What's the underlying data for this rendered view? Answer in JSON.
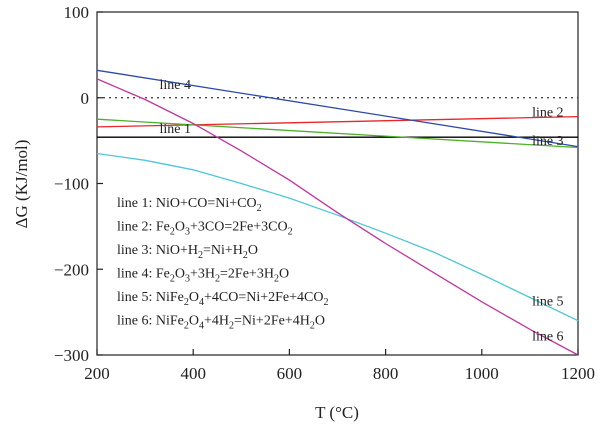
{
  "chart_data": {
    "type": "line",
    "title": "",
    "xlabel": "T (°C)",
    "ylabel": "ΔG (KJ/mol)",
    "xlim": [
      200,
      1200
    ],
    "ylim": [
      -300,
      100
    ],
    "xticks": [
      200,
      400,
      600,
      800,
      1000,
      1200
    ],
    "yticks": [
      100,
      0,
      -100,
      -200,
      -300
    ],
    "ytick_labels": [
      "100",
      "0",
      "−100",
      "−200",
      "−300"
    ],
    "grid": false,
    "zero_reference_line": "dotted",
    "series": [
      {
        "name": "line 1",
        "color": "#000000",
        "x": [
          200,
          1200
        ],
        "y": [
          -46,
          -46
        ]
      },
      {
        "name": "line 2",
        "color": "#e8262b",
        "x": [
          200,
          1200
        ],
        "y": [
          -34,
          -22
        ]
      },
      {
        "name": "line 3",
        "color": "#4caf2a",
        "x": [
          200,
          1200
        ],
        "y": [
          -25,
          -58
        ]
      },
      {
        "name": "line 4",
        "color": "#2c4aa8",
        "x": [
          200,
          1200
        ],
        "y": [
          32,
          -57
        ]
      },
      {
        "name": "line 5",
        "color": "#4ec6d8",
        "x": [
          200,
          300,
          400,
          500,
          600,
          700,
          800,
          900,
          1000,
          1100,
          1200
        ],
        "y": [
          -65,
          -73,
          -84,
          -100,
          -117,
          -137,
          -158,
          -180,
          -206,
          -233,
          -260
        ]
      },
      {
        "name": "line 6",
        "color": "#c2359f",
        "x": [
          200,
          300,
          400,
          500,
          600,
          700,
          800,
          900,
          1000,
          1100,
          1200
        ],
        "y": [
          22,
          -2,
          -30,
          -62,
          -96,
          -134,
          -170,
          -204,
          -238,
          -270,
          -300
        ]
      }
    ],
    "series_labels": [
      "line 4",
      "line 2",
      "line 1",
      "line 3",
      "line 5",
      "line 6"
    ],
    "legend": {
      "placement": "left",
      "entries": [
        [
          {
            "t": "line 1: NiO+CO=Ni+CO"
          },
          {
            "t": "2",
            "sub": true
          }
        ],
        [
          {
            "t": "line 2: Fe"
          },
          {
            "t": "2",
            "sub": true
          },
          {
            "t": "O"
          },
          {
            "t": "3",
            "sub": true
          },
          {
            "t": "+3CO=2Fe+3CO"
          },
          {
            "t": "2",
            "sub": true
          }
        ],
        [
          {
            "t": "line 3: NiO+H"
          },
          {
            "t": "2",
            "sub": true
          },
          {
            "t": "=Ni+H"
          },
          {
            "t": "2",
            "sub": true
          },
          {
            "t": "O"
          }
        ],
        [
          {
            "t": "line 4: Fe"
          },
          {
            "t": "2",
            "sub": true
          },
          {
            "t": "O"
          },
          {
            "t": "3",
            "sub": true
          },
          {
            "t": "+3H"
          },
          {
            "t": "2",
            "sub": true
          },
          {
            "t": "=2Fe+3H"
          },
          {
            "t": "2",
            "sub": true
          },
          {
            "t": "O"
          }
        ],
        [
          {
            "t": "line 5: NiFe"
          },
          {
            "t": "2",
            "sub": true
          },
          {
            "t": "O"
          },
          {
            "t": "4",
            "sub": true
          },
          {
            "t": "+4CO=Ni+2Fe+4CO"
          },
          {
            "t": "2",
            "sub": true
          }
        ],
        [
          {
            "t": "line 6: NiFe"
          },
          {
            "t": "2",
            "sub": true
          },
          {
            "t": "O"
          },
          {
            "t": "4",
            "sub": true
          },
          {
            "t": "+4H"
          },
          {
            "t": "2",
            "sub": true
          },
          {
            "t": "=Ni+2Fe+4H"
          },
          {
            "t": "2",
            "sub": true
          },
          {
            "t": "O"
          }
        ]
      ]
    }
  }
}
